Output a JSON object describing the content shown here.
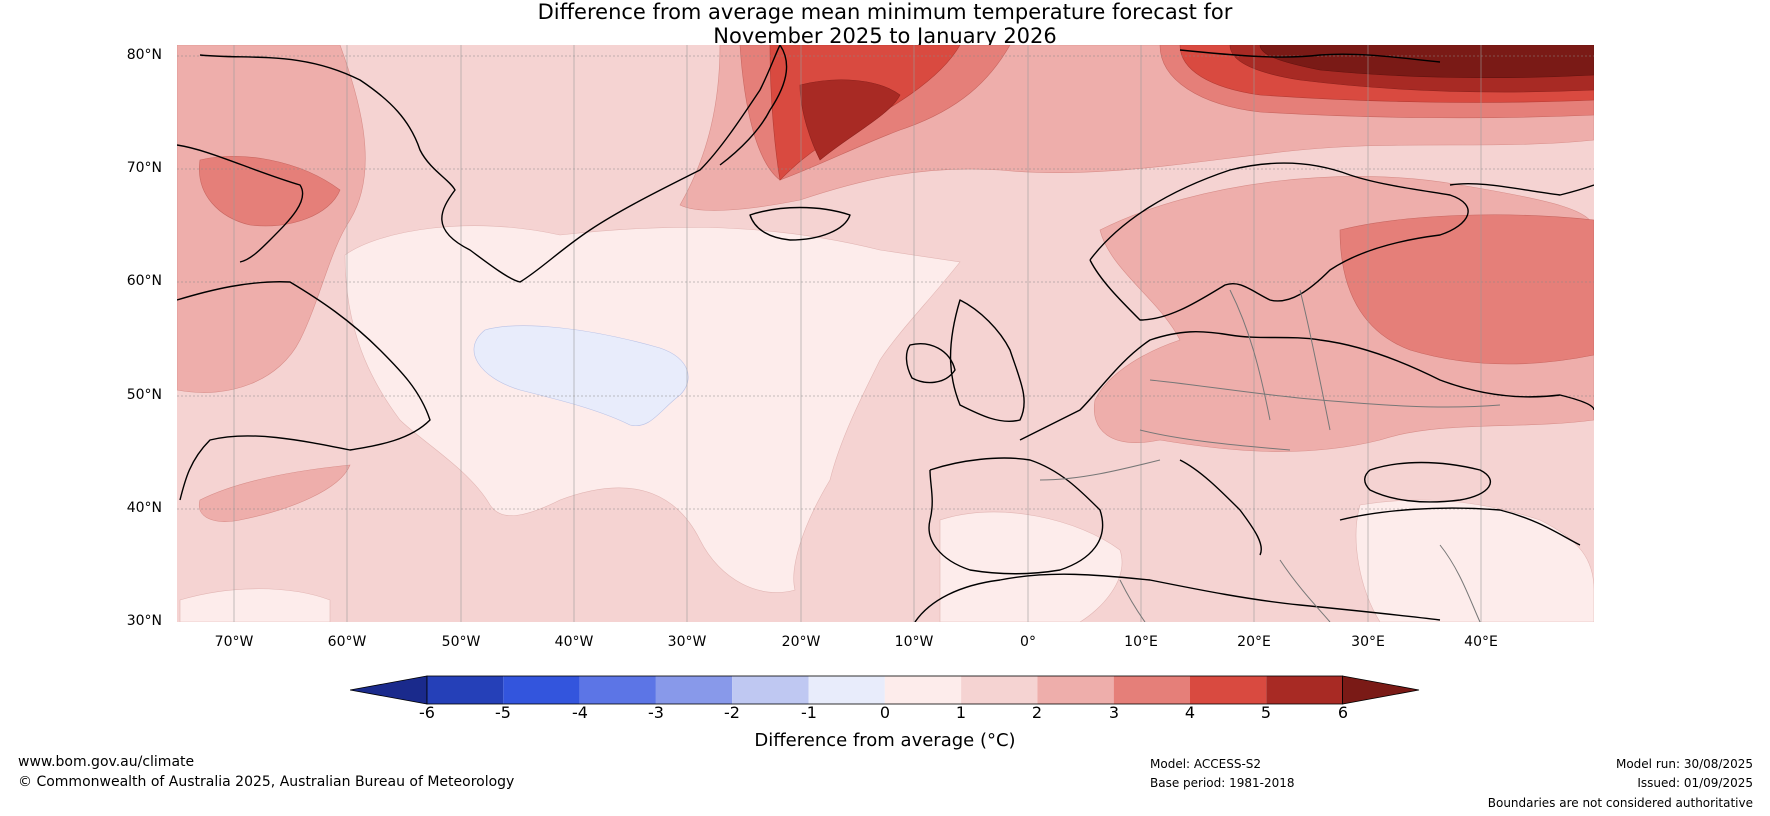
{
  "title": {
    "line1": "Difference from average mean minimum temperature forecast for",
    "line2": "November 2025 to January 2026"
  },
  "map": {
    "lat_labels": [
      "80°N",
      "70°N",
      "60°N",
      "50°N",
      "40°N",
      "30°N"
    ],
    "lon_labels": [
      "70°W",
      "60°W",
      "50°W",
      "40°W",
      "30°W",
      "20°W",
      "10°W",
      "0°",
      "10°E",
      "20°E",
      "30°E",
      "40°E"
    ],
    "extent": {
      "lon_min": -75,
      "lon_max": 50,
      "lat_min": 30,
      "lat_max": 80
    }
  },
  "colorbar": {
    "ticks": [
      "-6",
      "-5",
      "-4",
      "-3",
      "-2",
      "-1",
      "0",
      "1",
      "2",
      "3",
      "4",
      "5",
      "6"
    ],
    "colors": [
      "#1a2a8c",
      "#2540b8",
      "#3355dd",
      "#5c75e6",
      "#8899ea",
      "#bfc8f2",
      "#e8ecfb",
      "#fdeceb",
      "#f5d3d2",
      "#eeaeab",
      "#e57f79",
      "#d94a40",
      "#a82a24",
      "#7a1a16"
    ],
    "label": "Difference from average (°C)"
  },
  "footer": {
    "website": "www.bom.gov.au/climate",
    "copyright": "© Commonwealth of Australia 2025, Australian Bureau of Meteorology",
    "model": "Model: ACCESS-S2",
    "base_period": "Base period: 1981-2018",
    "model_run": "Model run: 30/08/2025",
    "issued": "Issued: 01/09/2025",
    "disclaimer": "Boundaries are not considered authoritative"
  }
}
